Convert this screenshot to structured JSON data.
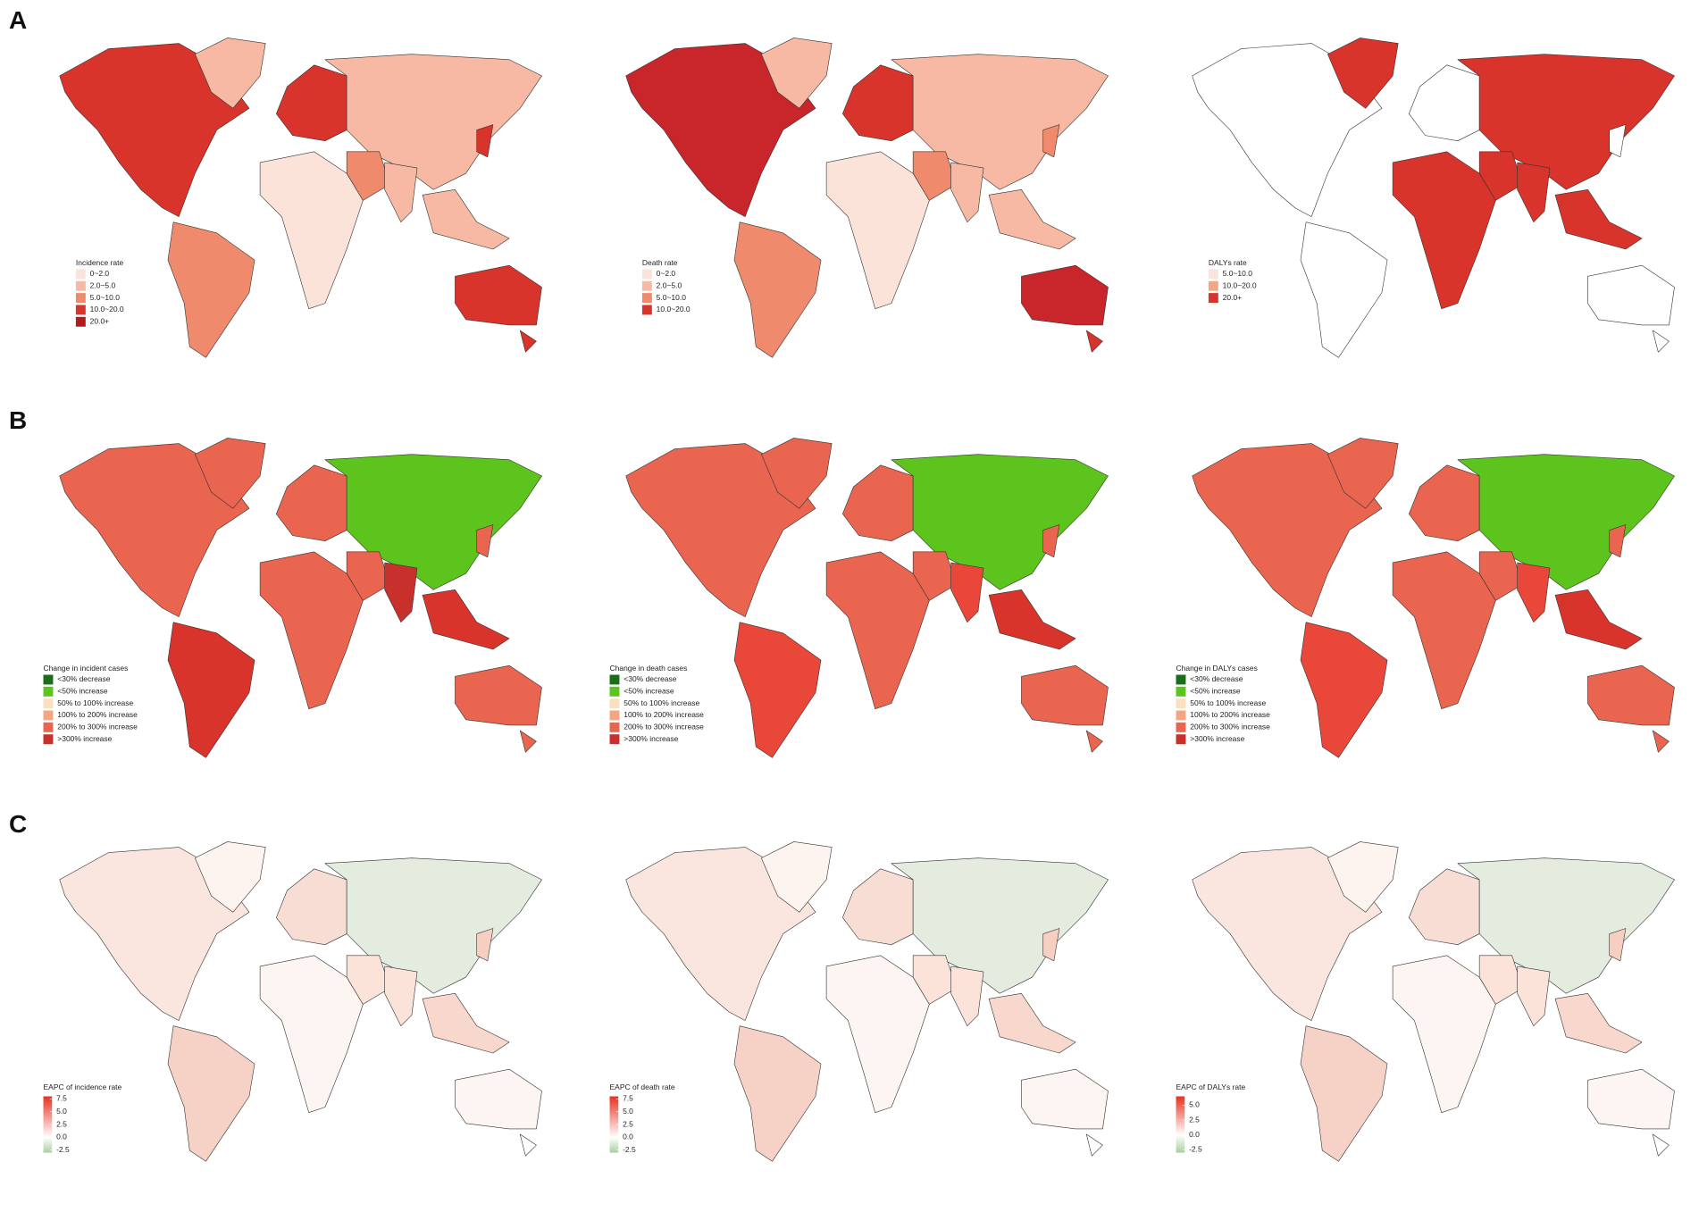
{
  "panels": [
    {
      "label": "A",
      "maps": [
        {
          "legend": {
            "title": "Incidence rate",
            "items": [
              {
                "label": "0~2.0",
                "color": "#fbe3da"
              },
              {
                "label": "2.0~5.0",
                "color": "#f7b9a3"
              },
              {
                "label": "5.0~10.0",
                "color": "#ef8a6c"
              },
              {
                "label": "10.0~20.0",
                "color": "#d9342b"
              },
              {
                "label": "20.0+",
                "color": "#b31a1a"
              }
            ]
          }
        },
        {
          "legend": {
            "title": "Death rate",
            "items": [
              {
                "label": "0~2.0",
                "color": "#fbe3da"
              },
              {
                "label": "2.0~5.0",
                "color": "#f7b9a3"
              },
              {
                "label": "5.0~10.0",
                "color": "#ef8a6c"
              },
              {
                "label": "10.0~20.0",
                "color": "#d9342b"
              }
            ]
          }
        },
        {
          "legend": {
            "title": "DALYs rate",
            "items": [
              {
                "label": "5.0~10.0",
                "color": "#fbe3da"
              },
              {
                "label": "10.0~20.0",
                "color": "#f4a582"
              },
              {
                "label": "20.0+",
                "color": "#d9342b"
              }
            ]
          }
        }
      ]
    },
    {
      "label": "B",
      "maps": [
        {
          "legend": {
            "title": "Change in incident cases",
            "items": [
              {
                "label": "<30% decrease",
                "color": "#1a6e1a"
              },
              {
                "label": "<50% increase",
                "color": "#5cc41c"
              },
              {
                "label": "50% to 100% increase",
                "color": "#fbe0c0"
              },
              {
                "label": "100% to 200% increase",
                "color": "#f4a582"
              },
              {
                "label": "200% to 300% increase",
                "color": "#ea6550"
              },
              {
                "label": ">300% increase",
                "color": "#c8312b"
              }
            ]
          }
        },
        {
          "legend": {
            "title": "Change in death cases",
            "items": [
              {
                "label": "<30% decrease",
                "color": "#1a6e1a"
              },
              {
                "label": "<50% increase",
                "color": "#5cc41c"
              },
              {
                "label": "50% to 100% increase",
                "color": "#fbe0c0"
              },
              {
                "label": "100% to 200% increase",
                "color": "#f4a582"
              },
              {
                "label": "200% to 300% increase",
                "color": "#ea6550"
              },
              {
                "label": ">300% increase",
                "color": "#c8312b"
              }
            ]
          }
        },
        {
          "legend": {
            "title": "Change in DALYs cases",
            "items": [
              {
                "label": "<30% decrease",
                "color": "#1a6e1a"
              },
              {
                "label": "<50% increase",
                "color": "#5cc41c"
              },
              {
                "label": "50% to 100% increase",
                "color": "#fbe0c0"
              },
              {
                "label": "100% to 200% increase",
                "color": "#f4a582"
              },
              {
                "label": "200% to 300% increase",
                "color": "#ea6550"
              },
              {
                "label": ">300% increase",
                "color": "#c8312b"
              }
            ]
          }
        }
      ]
    },
    {
      "label": "C",
      "maps": [
        {
          "legend": {
            "title": "EAPC of incidence rate",
            "colors": [
              "#a8cf9f",
              "#ffffff",
              "#e8321e"
            ],
            "lim": [
              -3,
              8
            ],
            "ticks": [
              {
                "value": 7.5,
                "label": "7.5"
              },
              {
                "value": 5,
                "label": "5.0"
              },
              {
                "value": 2.5,
                "label": "2.5"
              },
              {
                "value": 0,
                "label": "0.0"
              },
              {
                "value": -2.5,
                "label": "-2.5"
              }
            ]
          }
        },
        {
          "legend": {
            "title": "EAPC of death rate",
            "colors": [
              "#a8cf9f",
              "#ffffff",
              "#e8321e"
            ],
            "lim": [
              -3,
              8
            ],
            "ticks": [
              {
                "value": 7.5,
                "label": "7.5"
              },
              {
                "value": 5,
                "label": "5.0"
              },
              {
                "value": 2.5,
                "label": "2.5"
              },
              {
                "value": 0,
                "label": "0.0"
              },
              {
                "value": -2.5,
                "label": "-2.5"
              }
            ]
          }
        },
        {
          "legend": {
            "title": "EAPC of DALYs rate",
            "colors": [
              "#a8cf9f",
              "#ffffff",
              "#e8321e"
            ],
            "lim": [
              -3,
              6.5
            ],
            "ticks": [
              {
                "value": 5,
                "label": "5.0"
              },
              {
                "value": 2.5,
                "label": "2.5"
              },
              {
                "value": 0,
                "label": "0.0"
              },
              {
                "value": -2.5,
                "label": "-2.5"
              }
            ]
          }
        }
      ]
    }
  ]
}
